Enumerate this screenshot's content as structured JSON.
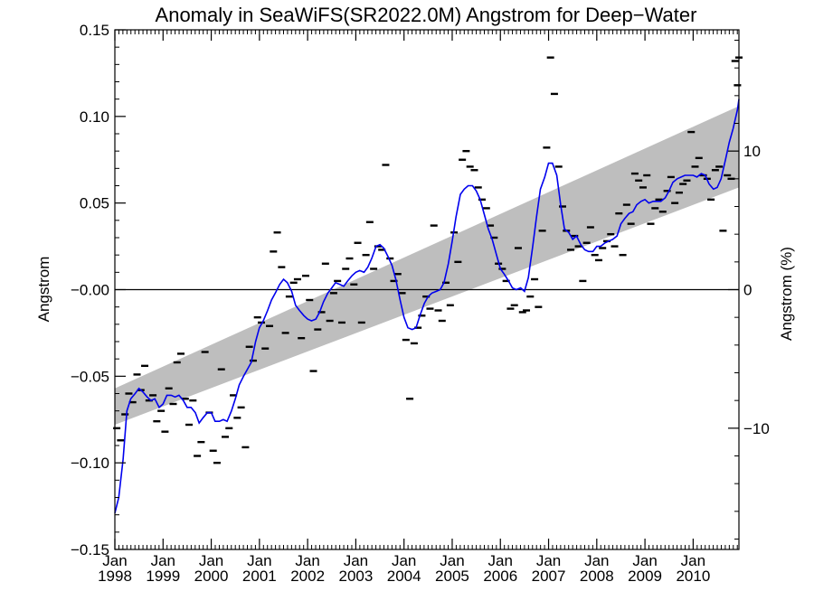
{
  "chart_data": {
    "type": "scatter",
    "title": "Anomaly in SeaWiFS(SR2022.0M) Angstrom for Deep−Water",
    "ylabel": "Angstrom",
    "ylabel_right": "Angstrom (%)",
    "xlim": [
      1998.0,
      2010.95
    ],
    "ylim": [
      -0.15,
      0.15
    ],
    "y_ticks": [
      {
        "value": 0.15,
        "label": "0.15"
      },
      {
        "value": 0.1,
        "label": "0.10"
      },
      {
        "value": 0.05,
        "label": "0.05"
      },
      {
        "value": 0.0,
        "label": "−0.00"
      },
      {
        "value": -0.05,
        "label": "−0.05"
      },
      {
        "value": -0.1,
        "label": "−0.10"
      },
      {
        "value": -0.15,
        "label": "−0.15"
      }
    ],
    "right_axis": {
      "percent_per_unit": 125.0,
      "ticks": [
        {
          "value": 10,
          "label": "10"
        },
        {
          "value": 0,
          "label": "0"
        },
        {
          "value": -10,
          "label": "−10"
        }
      ]
    },
    "x_ticks": [
      {
        "value": 1998,
        "month": "Jan",
        "year": "1998"
      },
      {
        "value": 1999,
        "month": "Jan",
        "year": "1999"
      },
      {
        "value": 2000,
        "month": "Jan",
        "year": "2000"
      },
      {
        "value": 2001,
        "month": "Jan",
        "year": "2001"
      },
      {
        "value": 2002,
        "month": "Jan",
        "year": "2002"
      },
      {
        "value": 2003,
        "month": "Jan",
        "year": "2003"
      },
      {
        "value": 2004,
        "month": "Jan",
        "year": "2004"
      },
      {
        "value": 2005,
        "month": "Jan",
        "year": "2005"
      },
      {
        "value": 2006,
        "month": "Jan",
        "year": "2006"
      },
      {
        "value": 2007,
        "month": "Jan",
        "year": "2007"
      },
      {
        "value": 2008,
        "month": "Jan",
        "year": "2008"
      },
      {
        "value": 2009,
        "month": "Jan",
        "year": "2009"
      },
      {
        "value": 2010,
        "month": "Jan",
        "year": "2010"
      }
    ],
    "trend_band": {
      "x": [
        1998.0,
        2010.95
      ],
      "upper": [
        -0.057,
        0.106
      ],
      "lower": [
        -0.078,
        0.059
      ]
    },
    "zero_line": 0,
    "monthly_points": [
      [
        1998.04,
        -0.08
      ],
      [
        1998.12,
        -0.087
      ],
      [
        1998.21,
        -0.072
      ],
      [
        1998.29,
        -0.06
      ],
      [
        1998.37,
        -0.065
      ],
      [
        1998.46,
        -0.049
      ],
      [
        1998.54,
        -0.058
      ],
      [
        1998.62,
        -0.044
      ],
      [
        1998.71,
        -0.064
      ],
      [
        1998.79,
        -0.061
      ],
      [
        1998.87,
        -0.076
      ],
      [
        1998.96,
        -0.07
      ],
      [
        1999.04,
        -0.082
      ],
      [
        1999.12,
        -0.057
      ],
      [
        1999.21,
        -0.066
      ],
      [
        1999.29,
        -0.042
      ],
      [
        1999.37,
        -0.037
      ],
      [
        1999.46,
        -0.063
      ],
      [
        1999.54,
        -0.078
      ],
      [
        1999.62,
        -0.064
      ],
      [
        1999.71,
        -0.096
      ],
      [
        1999.79,
        -0.088
      ],
      [
        1999.87,
        -0.036
      ],
      [
        1999.96,
        -0.071
      ],
      [
        2000.04,
        -0.093
      ],
      [
        2000.12,
        -0.1
      ],
      [
        2000.21,
        -0.046
      ],
      [
        2000.29,
        -0.085
      ],
      [
        2000.37,
        -0.08
      ],
      [
        2000.46,
        -0.061
      ],
      [
        2000.54,
        -0.074
      ],
      [
        2000.62,
        -0.068
      ],
      [
        2000.71,
        -0.091
      ],
      [
        2000.79,
        -0.033
      ],
      [
        2000.87,
        -0.041
      ],
      [
        2000.96,
        -0.016
      ],
      [
        2001.04,
        -0.019
      ],
      [
        2001.12,
        -0.034
      ],
      [
        2001.21,
        -0.021
      ],
      [
        2001.29,
        0.022
      ],
      [
        2001.37,
        0.033
      ],
      [
        2001.46,
        0.013
      ],
      [
        2001.54,
        -0.025
      ],
      [
        2001.62,
        -0.004
      ],
      [
        2001.71,
        0.004
      ],
      [
        2001.79,
        0.006
      ],
      [
        2001.87,
        -0.028
      ],
      [
        2001.96,
        0.008
      ],
      [
        2002.04,
        -0.006
      ],
      [
        2002.12,
        -0.047
      ],
      [
        2002.21,
        -0.023
      ],
      [
        2002.29,
        -0.013
      ],
      [
        2002.37,
        0.015
      ],
      [
        2002.46,
        -0.018
      ],
      [
        2002.54,
        -0.002
      ],
      [
        2002.62,
        0.005
      ],
      [
        2002.71,
        -0.019
      ],
      [
        2002.79,
        0.012
      ],
      [
        2002.87,
        0.018
      ],
      [
        2002.96,
        0.003
      ],
      [
        2003.04,
        0.027
      ],
      [
        2003.12,
        -0.019
      ],
      [
        2003.21,
        0.02
      ],
      [
        2003.29,
        0.039
      ],
      [
        2003.37,
        0.012
      ],
      [
        2003.46,
        0.025
      ],
      [
        2003.54,
        0.023
      ],
      [
        2003.62,
        0.072
      ],
      [
        2003.71,
        0.018
      ],
      [
        2003.79,
        0.005
      ],
      [
        2003.87,
        0.009
      ],
      [
        2003.96,
        -0.002
      ],
      [
        2004.04,
        -0.029
      ],
      [
        2004.12,
        -0.063
      ],
      [
        2004.21,
        -0.031
      ],
      [
        2004.29,
        -0.022
      ],
      [
        2004.37,
        -0.015
      ],
      [
        2004.46,
        -0.004
      ],
      [
        2004.54,
        -0.011
      ],
      [
        2004.62,
        0.037
      ],
      [
        2004.71,
        -0.012
      ],
      [
        2004.79,
        -0.018
      ],
      [
        2004.87,
        0.004
      ],
      [
        2004.96,
        -0.009
      ],
      [
        2005.04,
        0.033
      ],
      [
        2005.12,
        0.016
      ],
      [
        2005.21,
        0.075
      ],
      [
        2005.29,
        0.08
      ],
      [
        2005.37,
        0.071
      ],
      [
        2005.46,
        0.069
      ],
      [
        2005.54,
        0.059
      ],
      [
        2005.62,
        0.052
      ],
      [
        2005.71,
        0.047
      ],
      [
        2005.79,
        0.037
      ],
      [
        2005.87,
        0.03
      ],
      [
        2005.96,
        0.015
      ],
      [
        2006.04,
        0.012
      ],
      [
        2006.12,
        0.005
      ],
      [
        2006.21,
        -0.011
      ],
      [
        2006.29,
        -0.009
      ],
      [
        2006.37,
        0.024
      ],
      [
        2006.46,
        -0.013
      ],
      [
        2006.54,
        -0.012
      ],
      [
        2006.62,
        -0.004
      ],
      [
        2006.71,
        0.006
      ],
      [
        2006.79,
        -0.01
      ],
      [
        2006.87,
        0.034
      ],
      [
        2006.96,
        0.082
      ],
      [
        2007.04,
        0.134
      ],
      [
        2007.12,
        0.113
      ],
      [
        2007.21,
        0.071
      ],
      [
        2007.29,
        0.048
      ],
      [
        2007.37,
        0.034
      ],
      [
        2007.46,
        0.023
      ],
      [
        2007.54,
        0.031
      ],
      [
        2007.62,
        0.025
      ],
      [
        2007.71,
        0.005
      ],
      [
        2007.79,
        0.027
      ],
      [
        2007.87,
        0.036
      ],
      [
        2007.96,
        0.02
      ],
      [
        2008.04,
        0.017
      ],
      [
        2008.12,
        0.024
      ],
      [
        2008.21,
        0.028
      ],
      [
        2008.29,
        0.032
      ],
      [
        2008.37,
        0.025
      ],
      [
        2008.46,
        0.044
      ],
      [
        2008.54,
        0.02
      ],
      [
        2008.62,
        0.049
      ],
      [
        2008.71,
        0.038
      ],
      [
        2008.79,
        0.067
      ],
      [
        2008.87,
        0.063
      ],
      [
        2008.96,
        0.059
      ],
      [
        2009.04,
        0.066
      ],
      [
        2009.12,
        0.038
      ],
      [
        2009.21,
        0.047
      ],
      [
        2009.29,
        0.052
      ],
      [
        2009.37,
        0.045
      ],
      [
        2009.46,
        0.057
      ],
      [
        2009.54,
        0.065
      ],
      [
        2009.62,
        0.05
      ],
      [
        2009.71,
        0.056
      ],
      [
        2009.79,
        0.061
      ],
      [
        2009.87,
        0.063
      ],
      [
        2009.96,
        0.091
      ],
      [
        2010.04,
        0.071
      ],
      [
        2010.12,
        0.076
      ],
      [
        2010.21,
        0.066
      ],
      [
        2010.29,
        0.064
      ],
      [
        2010.37,
        0.052
      ],
      [
        2010.46,
        0.069
      ],
      [
        2010.54,
        0.071
      ],
      [
        2010.62,
        0.034
      ],
      [
        2010.71,
        0.066
      ],
      [
        2010.79,
        0.064
      ],
      [
        2010.87,
        0.132
      ],
      [
        2010.92,
        0.118
      ],
      [
        2010.95,
        0.134
      ]
    ],
    "smoothed_series": {
      "color": "#0000ee",
      "points": [
        [
          1998.0,
          -0.129
        ],
        [
          1998.08,
          -0.12
        ],
        [
          1998.17,
          -0.098
        ],
        [
          1998.25,
          -0.07
        ],
        [
          1998.33,
          -0.063
        ],
        [
          1998.42,
          -0.06
        ],
        [
          1998.5,
          -0.057
        ],
        [
          1998.58,
          -0.059
        ],
        [
          1998.67,
          -0.062
        ],
        [
          1998.75,
          -0.064
        ],
        [
          1998.83,
          -0.063
        ],
        [
          1998.92,
          -0.068
        ],
        [
          1999.0,
          -0.066
        ],
        [
          1999.08,
          -0.061
        ],
        [
          1999.17,
          -0.061
        ],
        [
          1999.25,
          -0.062
        ],
        [
          1999.33,
          -0.061
        ],
        [
          1999.42,
          -0.064
        ],
        [
          1999.5,
          -0.068
        ],
        [
          1999.58,
          -0.068
        ],
        [
          1999.67,
          -0.071
        ],
        [
          1999.75,
          -0.077
        ],
        [
          1999.83,
          -0.074
        ],
        [
          1999.92,
          -0.071
        ],
        [
          2000.0,
          -0.071
        ],
        [
          2000.08,
          -0.076
        ],
        [
          2000.17,
          -0.076
        ],
        [
          2000.25,
          -0.075
        ],
        [
          2000.33,
          -0.076
        ],
        [
          2000.42,
          -0.07
        ],
        [
          2000.5,
          -0.063
        ],
        [
          2000.58,
          -0.055
        ],
        [
          2000.67,
          -0.05
        ],
        [
          2000.75,
          -0.046
        ],
        [
          2000.83,
          -0.042
        ],
        [
          2000.92,
          -0.03
        ],
        [
          2001.0,
          -0.022
        ],
        [
          2001.08,
          -0.018
        ],
        [
          2001.17,
          -0.012
        ],
        [
          2001.25,
          -0.006
        ],
        [
          2001.33,
          -0.002
        ],
        [
          2001.42,
          0.003
        ],
        [
          2001.5,
          0.006
        ],
        [
          2001.58,
          0.004
        ],
        [
          2001.67,
          -0.001
        ],
        [
          2001.75,
          -0.009
        ],
        [
          2001.83,
          -0.012
        ],
        [
          2001.92,
          -0.015
        ],
        [
          2002.0,
          -0.017
        ],
        [
          2002.08,
          -0.018
        ],
        [
          2002.17,
          -0.017
        ],
        [
          2002.25,
          -0.013
        ],
        [
          2002.33,
          -0.007
        ],
        [
          2002.42,
          -0.002
        ],
        [
          2002.5,
          0.001
        ],
        [
          2002.58,
          0.004
        ],
        [
          2002.67,
          0.003
        ],
        [
          2002.75,
          0.002
        ],
        [
          2002.83,
          0.005
        ],
        [
          2002.92,
          0.008
        ],
        [
          2003.0,
          0.01
        ],
        [
          2003.08,
          0.011
        ],
        [
          2003.17,
          0.01
        ],
        [
          2003.25,
          0.013
        ],
        [
          2003.33,
          0.018
        ],
        [
          2003.42,
          0.025
        ],
        [
          2003.5,
          0.026
        ],
        [
          2003.58,
          0.024
        ],
        [
          2003.67,
          0.019
        ],
        [
          2003.75,
          0.014
        ],
        [
          2003.83,
          0.006
        ],
        [
          2003.92,
          -0.006
        ],
        [
          2004.0,
          -0.016
        ],
        [
          2004.08,
          -0.022
        ],
        [
          2004.17,
          -0.023
        ],
        [
          2004.25,
          -0.022
        ],
        [
          2004.33,
          -0.015
        ],
        [
          2004.42,
          -0.008
        ],
        [
          2004.5,
          -0.004
        ],
        [
          2004.58,
          -0.002
        ],
        [
          2004.67,
          -0.001
        ],
        [
          2004.75,
          0.0
        ],
        [
          2004.83,
          0.004
        ],
        [
          2004.92,
          0.015
        ],
        [
          2005.0,
          0.028
        ],
        [
          2005.08,
          0.042
        ],
        [
          2005.17,
          0.055
        ],
        [
          2005.25,
          0.058
        ],
        [
          2005.33,
          0.06
        ],
        [
          2005.42,
          0.06
        ],
        [
          2005.5,
          0.057
        ],
        [
          2005.58,
          0.052
        ],
        [
          2005.67,
          0.043
        ],
        [
          2005.75,
          0.035
        ],
        [
          2005.83,
          0.029
        ],
        [
          2005.92,
          0.02
        ],
        [
          2006.0,
          0.012
        ],
        [
          2006.08,
          0.009
        ],
        [
          2006.17,
          0.005
        ],
        [
          2006.25,
          0.001
        ],
        [
          2006.33,
          0.0
        ],
        [
          2006.42,
          0.001
        ],
        [
          2006.5,
          -0.001
        ],
        [
          2006.58,
          0.007
        ],
        [
          2006.67,
          0.025
        ],
        [
          2006.75,
          0.042
        ],
        [
          2006.83,
          0.058
        ],
        [
          2006.92,
          0.065
        ],
        [
          2007.0,
          0.073
        ],
        [
          2007.08,
          0.073
        ],
        [
          2007.17,
          0.066
        ],
        [
          2007.25,
          0.049
        ],
        [
          2007.33,
          0.035
        ],
        [
          2007.42,
          0.033
        ],
        [
          2007.5,
          0.029
        ],
        [
          2007.58,
          0.031
        ],
        [
          2007.67,
          0.026
        ],
        [
          2007.75,
          0.023
        ],
        [
          2007.83,
          0.022
        ],
        [
          2007.92,
          0.022
        ],
        [
          2008.0,
          0.025
        ],
        [
          2008.08,
          0.025
        ],
        [
          2008.17,
          0.027
        ],
        [
          2008.25,
          0.028
        ],
        [
          2008.33,
          0.029
        ],
        [
          2008.42,
          0.031
        ],
        [
          2008.5,
          0.038
        ],
        [
          2008.58,
          0.041
        ],
        [
          2008.67,
          0.044
        ],
        [
          2008.75,
          0.045
        ],
        [
          2008.83,
          0.049
        ],
        [
          2008.92,
          0.051
        ],
        [
          2009.0,
          0.052
        ],
        [
          2009.08,
          0.05
        ],
        [
          2009.17,
          0.051
        ],
        [
          2009.25,
          0.051
        ],
        [
          2009.33,
          0.051
        ],
        [
          2009.42,
          0.053
        ],
        [
          2009.5,
          0.057
        ],
        [
          2009.58,
          0.062
        ],
        [
          2009.67,
          0.064
        ],
        [
          2009.75,
          0.065
        ],
        [
          2009.83,
          0.066
        ],
        [
          2009.92,
          0.066
        ],
        [
          2010.0,
          0.066
        ],
        [
          2010.08,
          0.065
        ],
        [
          2010.17,
          0.067
        ],
        [
          2010.25,
          0.066
        ],
        [
          2010.33,
          0.061
        ],
        [
          2010.42,
          0.058
        ],
        [
          2010.5,
          0.059
        ],
        [
          2010.58,
          0.064
        ],
        [
          2010.67,
          0.075
        ],
        [
          2010.75,
          0.085
        ],
        [
          2010.83,
          0.093
        ],
        [
          2010.92,
          0.104
        ],
        [
          2010.95,
          0.11
        ]
      ]
    }
  }
}
